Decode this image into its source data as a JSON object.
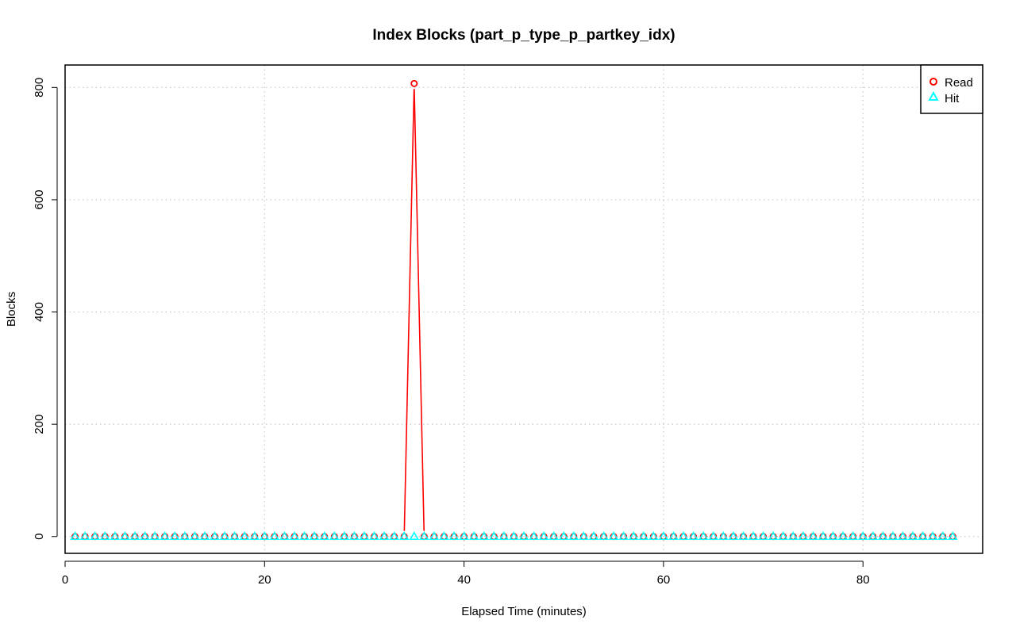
{
  "chart_data": {
    "type": "line",
    "title": "Index Blocks (part_p_type_p_partkey_idx)",
    "xlabel": "Elapsed Time (minutes)",
    "ylabel": "Blocks",
    "xlim": [
      0,
      92
    ],
    "ylim": [
      -30,
      840
    ],
    "x_ticks": [
      0,
      20,
      40,
      60,
      80
    ],
    "y_ticks": [
      0,
      200,
      400,
      600,
      800
    ],
    "grid": true,
    "legend_position": "top-right",
    "x": [
      1,
      2,
      3,
      4,
      5,
      6,
      7,
      8,
      9,
      10,
      11,
      12,
      13,
      14,
      15,
      16,
      17,
      18,
      19,
      20,
      21,
      22,
      23,
      24,
      25,
      26,
      27,
      28,
      29,
      30,
      31,
      32,
      33,
      34,
      35,
      36,
      37,
      38,
      39,
      40,
      41,
      42,
      43,
      44,
      45,
      46,
      47,
      48,
      49,
      50,
      51,
      52,
      53,
      54,
      55,
      56,
      57,
      58,
      59,
      60,
      61,
      62,
      63,
      64,
      65,
      66,
      67,
      68,
      69,
      70,
      71,
      72,
      73,
      74,
      75,
      76,
      77,
      78,
      79,
      80,
      81,
      82,
      83,
      84,
      85,
      86,
      87,
      88,
      89
    ],
    "series": [
      {
        "name": "Read",
        "color": "#ff0000",
        "marker": "circle",
        "values": [
          0,
          0,
          0,
          0,
          0,
          0,
          0,
          0,
          0,
          0,
          0,
          0,
          0,
          0,
          0,
          0,
          0,
          0,
          0,
          0,
          0,
          0,
          0,
          0,
          0,
          0,
          0,
          0,
          0,
          0,
          0,
          0,
          0,
          0,
          807,
          0,
          0,
          0,
          0,
          0,
          0,
          0,
          0,
          0,
          0,
          0,
          0,
          0,
          0,
          0,
          0,
          0,
          0,
          0,
          0,
          0,
          0,
          0,
          0,
          0,
          0,
          0,
          0,
          0,
          0,
          0,
          0,
          0,
          0,
          0,
          0,
          0,
          0,
          0,
          0,
          0,
          0,
          0,
          0,
          0,
          0,
          0,
          0,
          0,
          0,
          0,
          0,
          0,
          0
        ]
      },
      {
        "name": "Hit",
        "color": "#00ffff",
        "marker": "triangle",
        "values": [
          0,
          0,
          0,
          0,
          0,
          0,
          0,
          0,
          0,
          0,
          0,
          0,
          0,
          0,
          0,
          0,
          0,
          0,
          0,
          0,
          0,
          0,
          0,
          0,
          0,
          0,
          0,
          0,
          0,
          0,
          0,
          0,
          0,
          0,
          0,
          0,
          0,
          0,
          0,
          0,
          0,
          0,
          0,
          0,
          0,
          0,
          0,
          0,
          0,
          0,
          0,
          0,
          0,
          0,
          0,
          0,
          0,
          0,
          0,
          0,
          0,
          0,
          0,
          0,
          0,
          0,
          0,
          0,
          0,
          0,
          0,
          0,
          0,
          0,
          0,
          0,
          0,
          0,
          0,
          0,
          0,
          0,
          0,
          0,
          0,
          0,
          0,
          0,
          0
        ]
      }
    ]
  }
}
